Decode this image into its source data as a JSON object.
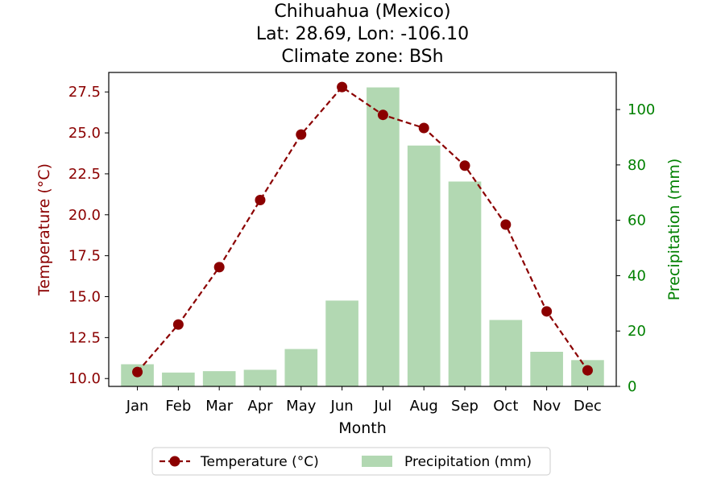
{
  "chart_data": {
    "type": "bar+line",
    "title_lines": [
      "Chihuahua (Mexico)",
      "Lat: 28.69, Lon: -106.10",
      "Climate zone: BSh"
    ],
    "xlabel": "Month",
    "categories": [
      "Jan",
      "Feb",
      "Mar",
      "Apr",
      "May",
      "Jun",
      "Jul",
      "Aug",
      "Sep",
      "Oct",
      "Nov",
      "Dec"
    ],
    "series": [
      {
        "name": "Temperature (°C)",
        "type": "line",
        "axis": "left",
        "color": "#8b0000",
        "line_style": "dashed",
        "marker": "circle",
        "values": [
          10.4,
          13.3,
          16.8,
          20.9,
          24.9,
          27.8,
          26.1,
          25.3,
          23.0,
          19.4,
          14.1,
          10.5
        ]
      },
      {
        "name": "Precipitation (mm)",
        "type": "bar",
        "axis": "right",
        "color": "#b2d8b2",
        "values": [
          8,
          5,
          5.5,
          6,
          13.5,
          31,
          108,
          87,
          74,
          24,
          12.5,
          9.5
        ]
      }
    ],
    "y_left": {
      "label": "Temperature (°C)",
      "color": "#8b0000",
      "ticks": [
        "10.0",
        "12.5",
        "15.0",
        "17.5",
        "20.0",
        "22.5",
        "25.0",
        "27.5"
      ],
      "ylim": [
        9.52,
        28.69
      ]
    },
    "y_right": {
      "label": "Precipitation (mm)",
      "color": "#008000",
      "ticks": [
        "0",
        "20",
        "40",
        "60",
        "80",
        "100"
      ],
      "ylim": [
        0,
        113.4
      ]
    },
    "legend": {
      "placement": "bottom-center",
      "entries": [
        "Temperature (°C)",
        "Precipitation (mm)"
      ]
    },
    "grid": false
  }
}
